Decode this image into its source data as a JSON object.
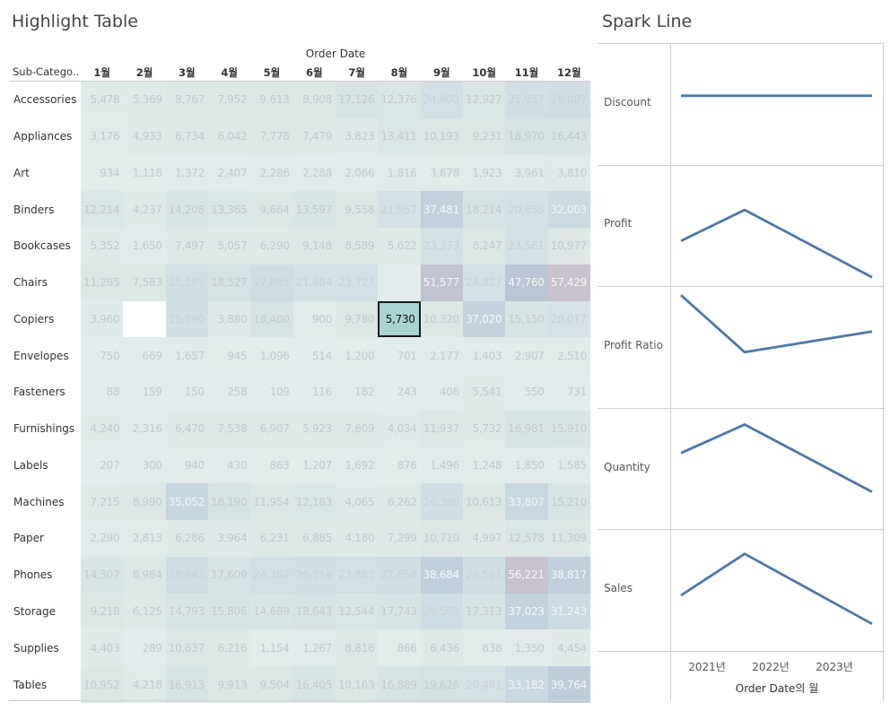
{
  "highlight_table": {
    "title": "Highlight Table",
    "column_group_label": "Order Date",
    "row_header_label": "Sub-Catego..",
    "months": [
      "1월",
      "2월",
      "3월",
      "4월",
      "5월",
      "6월",
      "7월",
      "8월",
      "9월",
      "10월",
      "11월",
      "12월"
    ],
    "selected_cell": {
      "row": "Copiers",
      "month": "8월",
      "value": "5,730"
    },
    "colors": {
      "background": "#e3ecec",
      "low": "#dde8e6",
      "mid": "#cfdde4",
      "high": "#b7c5d6",
      "top": "#c9c2cd",
      "selected": "#a9d6d2",
      "blank": "#ffffff"
    }
  },
  "spark_line": {
    "title": "Spark Line",
    "x_title": "Order Date의 월",
    "years": [
      "2021년",
      "2022년",
      "2023년"
    ],
    "line_color": "#4e79a7"
  },
  "chart_data": [
    {
      "type": "heatmap",
      "title": "Highlight Table",
      "xlabel": "Order Date",
      "ylabel": "Sub-Catego..",
      "x": [
        "1월",
        "2월",
        "3월",
        "4월",
        "5월",
        "6월",
        "7월",
        "8월",
        "9월",
        "10월",
        "11월",
        "12월"
      ],
      "rows": [
        {
          "name": "Accessories",
          "values": [
            "5,478",
            "5,369",
            "8,767",
            "7,952",
            "9,613",
            "8,908",
            "17,126",
            "12,376",
            "24,900",
            "12,927",
            "25,957",
            "28,007"
          ]
        },
        {
          "name": "Appliances",
          "values": [
            "3,176",
            "4,933",
            "6,734",
            "6,042",
            "7,778",
            "7,479",
            "3,823",
            "13,411",
            "10,193",
            "9,231",
            "18,970",
            "16,443"
          ]
        },
        {
          "name": "Art",
          "values": [
            "934",
            "1,118",
            "1,372",
            "2,407",
            "2,286",
            "2,288",
            "2,066",
            "1,816",
            "3,678",
            "1,923",
            "3,961",
            "3,810"
          ]
        },
        {
          "name": "Binders",
          "values": [
            "12,214",
            "4,237",
            "14,208",
            "13,365",
            "9,664",
            "13,597",
            "9,558",
            "21,957",
            "37,481",
            "18,214",
            "20,858",
            "32,003"
          ]
        },
        {
          "name": "Bookcases",
          "values": [
            "5,352",
            "1,650",
            "7,497",
            "5,057",
            "6,290",
            "9,148",
            "8,589",
            "5,622",
            "23,373",
            "8,247",
            "23,561",
            "10,977"
          ]
        },
        {
          "name": "Chairs",
          "values": [
            "11,285",
            "7,583",
            "25,165",
            "18,527",
            "27,865",
            "21,684",
            "23,727",
            "",
            "51,577",
            "24,827",
            "47,760",
            "57,429"
          ]
        },
        {
          "name": "Copiers",
          "values": [
            "3,960",
            "",
            "25,590",
            "3,880",
            "18,400",
            "900",
            "9,780",
            "5,730",
            "10,320",
            "37,020",
            "15,150",
            "20,017"
          ]
        },
        {
          "name": "Envelopes",
          "values": [
            "750",
            "669",
            "1,657",
            "945",
            "1,096",
            "514",
            "1,200",
            "701",
            "2,177",
            "1,403",
            "2,907",
            "2,510"
          ]
        },
        {
          "name": "Fasteners",
          "values": [
            "88",
            "159",
            "150",
            "258",
            "109",
            "116",
            "182",
            "243",
            "406",
            "5,541",
            "550",
            "731"
          ]
        },
        {
          "name": "Furnishings",
          "values": [
            "4,240",
            "2,316",
            "6,470",
            "7,538",
            "6,907",
            "5,923",
            "7,609",
            "4,034",
            "11,937",
            "5,732",
            "16,981",
            "15,910"
          ]
        },
        {
          "name": "Labels",
          "values": [
            "207",
            "300",
            "940",
            "430",
            "863",
            "1,207",
            "1,692",
            "876",
            "1,496",
            "1,248",
            "1,850",
            "1,585"
          ]
        },
        {
          "name": "Machines",
          "values": [
            "7,215",
            "8,990",
            "35,052",
            "18,190",
            "11,954",
            "12,183",
            "4,065",
            "6,262",
            "26,386",
            "10,613",
            "33,807",
            "15,210"
          ]
        },
        {
          "name": "Paper",
          "values": [
            "2,290",
            "2,813",
            "6,286",
            "3,964",
            "6,231",
            "6,885",
            "4,180",
            "7,299",
            "10,710",
            "4,997",
            "12,578",
            "11,309"
          ]
        },
        {
          "name": "Phones",
          "values": [
            "14,307",
            "8,984",
            "28,443",
            "17,609",
            "24,362",
            "26,314",
            "23,883",
            "27,658",
            "38,684",
            "26,561",
            "56,221",
            "38,817"
          ]
        },
        {
          "name": "Storage",
          "values": [
            "9,218",
            "6,125",
            "14,793",
            "15,806",
            "14,689",
            "18,643",
            "12,544",
            "17,743",
            "29,505",
            "17,313",
            "37,023",
            "31,243"
          ]
        },
        {
          "name": "Supplies",
          "values": [
            "4,403",
            "289",
            "10,637",
            "6,216",
            "1,154",
            "1,267",
            "8,816",
            "866",
            "6,436",
            "838",
            "1,350",
            "4,454"
          ]
        },
        {
          "name": "Tables",
          "values": [
            "10,952",
            "4,218",
            "16,913",
            "9,913",
            "9,504",
            "16,405",
            "10,163",
            "16,889",
            "19,626",
            "20,491",
            "33,182",
            "39,764"
          ]
        }
      ]
    },
    {
      "type": "line",
      "title": "Spark Line",
      "x": [
        "2021년",
        "2022년",
        "2023년"
      ],
      "xlabel": "Order Date의 월",
      "series": [
        {
          "name": "Discount",
          "values": [
            0.156,
            0.156,
            0.156
          ]
        },
        {
          "name": "Profit",
          "values": [
            -0.3,
            0.3,
            -1.0
          ]
        },
        {
          "name": "Profit Ratio",
          "values": [
            1.0,
            -0.1,
            0.3
          ]
        },
        {
          "name": "Quantity",
          "values": [
            0.3,
            0.85,
            -0.45
          ]
        },
        {
          "name": "Sales",
          "values": [
            -0.1,
            0.7,
            -0.65
          ]
        }
      ]
    }
  ]
}
